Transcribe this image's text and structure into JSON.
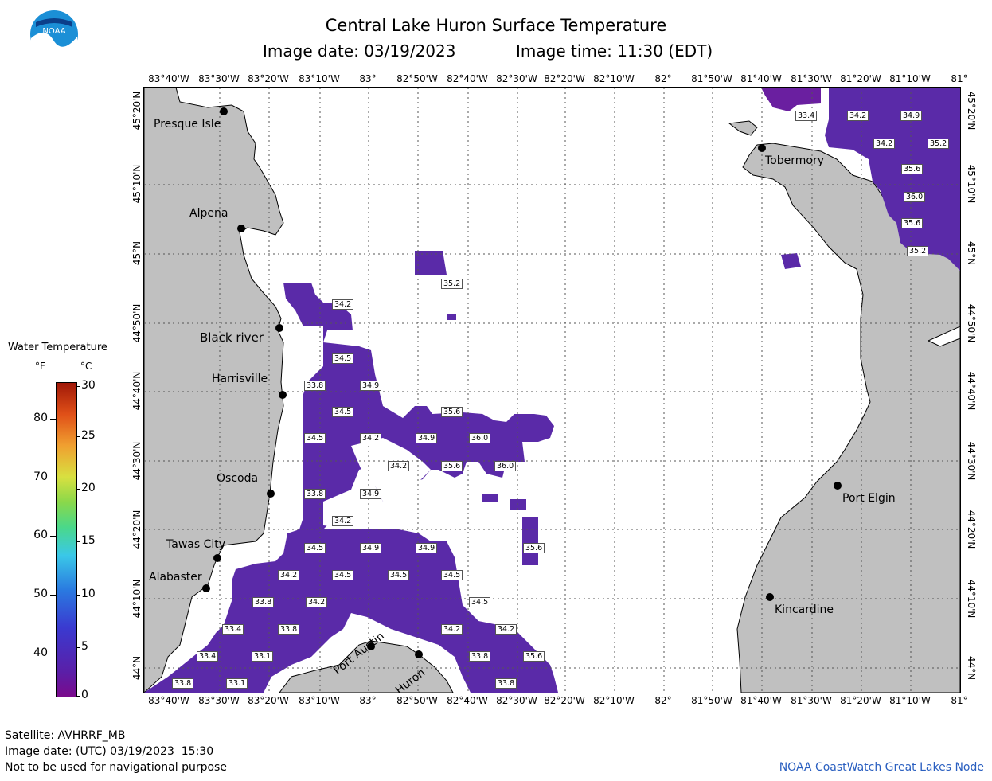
{
  "title": "Central Lake Huron Surface Temperature",
  "subtitle_date": "Image date: 03/19/2023",
  "subtitle_time": "Image time: 11:30 (EDT)",
  "logo_text": "NOAA",
  "lon_labels": [
    "83°40'W",
    "83°30'W",
    "83°20'W",
    "83°10'W",
    "83°",
    "82°50'W",
    "82°40'W",
    "82°30'W",
    "82°20'W",
    "82°10'W",
    "82°",
    "81°50'W",
    "81°40'W",
    "81°30'W",
    "81°20'W",
    "81°10'W",
    "81°"
  ],
  "lat_labels": [
    "45°20'N",
    "45°10'N",
    "45°N",
    "44°50'N",
    "44°40'N",
    "44°30'N",
    "44°20'N",
    "44°10'N",
    "44°N"
  ],
  "legend": {
    "title": "Water Temperature",
    "unit_f": "°F",
    "unit_c": "°C",
    "f_ticks": [
      "80",
      "70",
      "60",
      "50",
      "40"
    ],
    "c_ticks": [
      "30",
      "25",
      "20",
      "15",
      "10",
      "5",
      "0"
    ],
    "colors": {
      "low": "#7a0a8c",
      "mid": "#3ac8e8",
      "high": "#a01808"
    }
  },
  "cities": [
    {
      "name": "Presque Isle"
    },
    {
      "name": "Alpena"
    },
    {
      "name": "Black river"
    },
    {
      "name": "Harrisville"
    },
    {
      "name": "Oscoda"
    },
    {
      "name": "Tawas City"
    },
    {
      "name": "Alabaster"
    },
    {
      "name": "Port Austin"
    },
    {
      "name": "Huron"
    },
    {
      "name": "Tobermory"
    },
    {
      "name": "Port Elgin"
    },
    {
      "name": "Kincardine"
    }
  ],
  "temps": [
    "33.4",
    "34.2",
    "34.9",
    "34.2",
    "35.2",
    "35.6",
    "36.0",
    "35.6",
    "35.2",
    "34.2",
    "35.2",
    "34.5",
    "33.8",
    "34.9",
    "34.5",
    "35.6",
    "34.5",
    "34.2",
    "34.9",
    "36.0",
    "34.2",
    "35.6",
    "36.0",
    "33.8",
    "34.9",
    "34.2",
    "35.6",
    "34.5",
    "34.9",
    "34.9",
    "34.2",
    "34.5",
    "34.5",
    "34.5",
    "33.8",
    "34.2",
    "34.5",
    "33.4",
    "33.8",
    "34.2",
    "34.2",
    "33.4",
    "33.1",
    "33.8",
    "35.6",
    "33.8",
    "33.1",
    "33.8"
  ],
  "footer": {
    "satellite": "Satellite: AVHRRF_MB",
    "utc": "Image date: (UTC) 03/19/2023  15:30",
    "warning": "Not to be used for navigational purpose",
    "credit": "NOAA CoastWatch Great Lakes Node"
  },
  "colors": {
    "land": "#c0c0c0",
    "water_temp": "#5a2aa8",
    "water": "#ffffff"
  }
}
